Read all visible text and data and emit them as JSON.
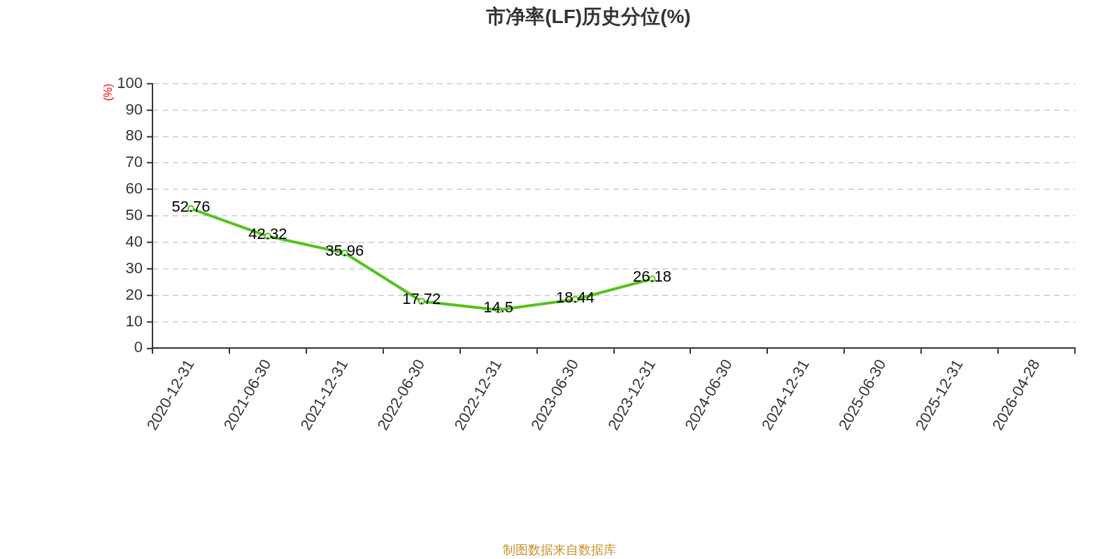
{
  "chart_data": {
    "type": "line",
    "title": "市净率(LF)历史分位(%)",
    "ylabel": "(%)",
    "categories": [
      "2020-12-31",
      "2021-06-30",
      "2021-12-31",
      "2022-06-30",
      "2022-12-31",
      "2023-06-30",
      "2023-12-31",
      "2024-06-30",
      "2024-12-31",
      "2025-06-30",
      "2025-12-31",
      "2026-04-28"
    ],
    "values": [
      52.76,
      42.32,
      35.96,
      17.72,
      14.5,
      18.44,
      26.18,
      null,
      null,
      null,
      null,
      null
    ],
    "color": "#52c41a",
    "ylim": [
      0,
      100
    ],
    "yticks": [
      0,
      10,
      20,
      30,
      40,
      50,
      60,
      70,
      80,
      90,
      100
    ],
    "grid": "y",
    "legend": false,
    "marker": "circle",
    "line_style": "solid",
    "data_labels": true,
    "annotations": [
      "制图数据来自数据库"
    ]
  }
}
